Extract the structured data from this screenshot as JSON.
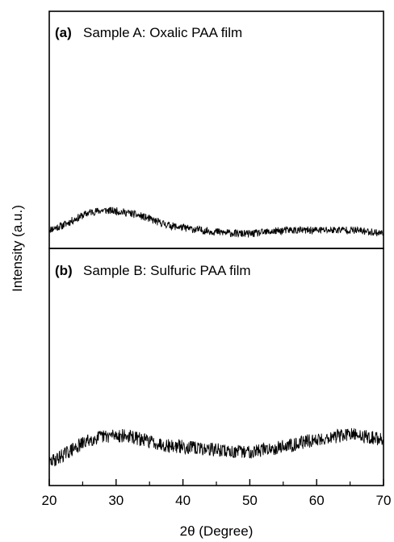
{
  "chart_data": {
    "type": "line",
    "xlabel": "2θ (Degree)",
    "ylabel": "Intensity (a.u.)",
    "xlim": [
      20,
      70
    ],
    "xticks": [
      20,
      30,
      40,
      50,
      60,
      70
    ],
    "grid": false,
    "legend": "none",
    "panels": [
      {
        "id": "a",
        "tag": "(a)",
        "title": "Sample A: Oxalic PAA film",
        "noise": 0.55,
        "profile": [
          [
            20,
            0.6
          ],
          [
            22,
            1.2
          ],
          [
            24,
            2.2
          ],
          [
            26,
            3.1
          ],
          [
            28,
            3.4
          ],
          [
            30,
            3.3
          ],
          [
            32,
            3.0
          ],
          [
            34,
            2.5
          ],
          [
            36,
            1.8
          ],
          [
            38,
            1.2
          ],
          [
            40,
            0.9
          ],
          [
            42,
            0.6
          ],
          [
            44,
            0.4
          ],
          [
            46,
            0.2
          ],
          [
            48,
            0.05
          ],
          [
            50,
            0.0
          ],
          [
            52,
            0.2
          ],
          [
            54,
            0.4
          ],
          [
            56,
            0.55
          ],
          [
            58,
            0.5
          ],
          [
            60,
            0.55
          ],
          [
            62,
            0.55
          ],
          [
            64,
            0.6
          ],
          [
            66,
            0.5
          ],
          [
            68,
            0.3
          ],
          [
            70,
            0.1
          ]
        ]
      },
      {
        "id": "b",
        "tag": "(b)",
        "title": "Sample B: Sulfuric PAA film",
        "noise": 0.9,
        "profile": [
          [
            20,
            0.0
          ],
          [
            22,
            1.0
          ],
          [
            24,
            2.0
          ],
          [
            26,
            3.0
          ],
          [
            28,
            3.4
          ],
          [
            30,
            3.6
          ],
          [
            32,
            3.4
          ],
          [
            34,
            3.0
          ],
          [
            36,
            2.6
          ],
          [
            38,
            2.2
          ],
          [
            40,
            2.1
          ],
          [
            42,
            1.9
          ],
          [
            44,
            1.8
          ],
          [
            46,
            1.6
          ],
          [
            48,
            1.4
          ],
          [
            50,
            1.5
          ],
          [
            52,
            1.7
          ],
          [
            54,
            2.0
          ],
          [
            56,
            2.3
          ],
          [
            58,
            2.7
          ],
          [
            60,
            3.0
          ],
          [
            62,
            3.3
          ],
          [
            64,
            3.6
          ],
          [
            66,
            3.6
          ],
          [
            68,
            3.3
          ],
          [
            70,
            3.0
          ]
        ]
      }
    ]
  }
}
